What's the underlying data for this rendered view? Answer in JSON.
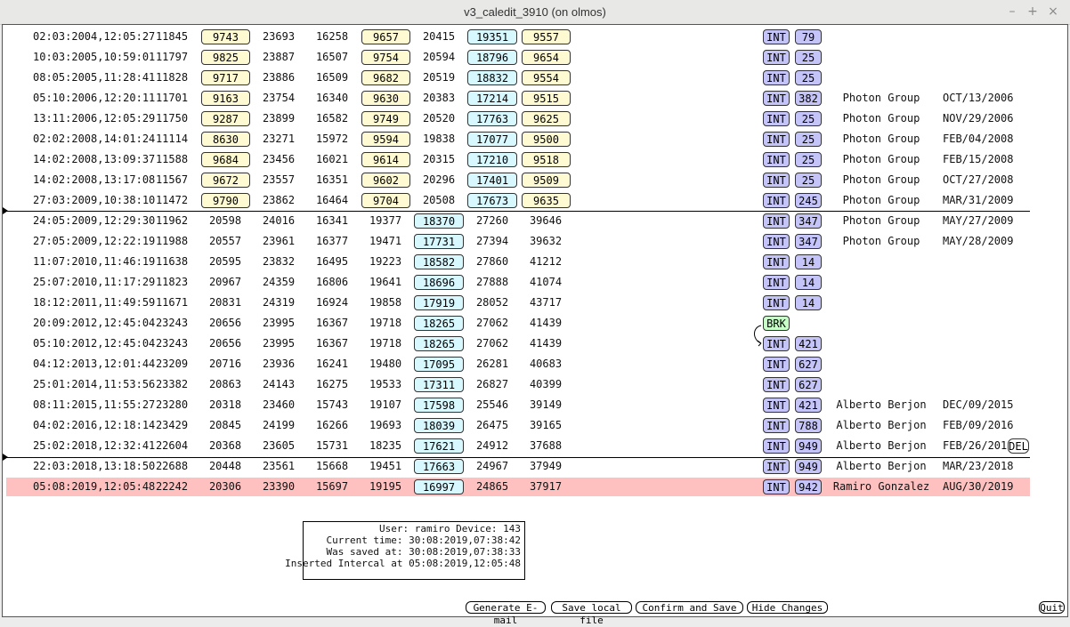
{
  "window": {
    "title": "v3_caledit_3910 (on olmos)",
    "minimize": "–",
    "maximize": "+",
    "close": "×"
  },
  "rows": [
    {
      "d": "02:03:2004,12:05:27",
      "v": [
        "11845",
        "9743",
        "23693",
        "16258",
        "9657",
        "20415",
        "19351",
        "9557"
      ],
      "layout": "A",
      "tag": "INT",
      "n": "79",
      "who": "",
      "date": ""
    },
    {
      "d": "10:03:2005,10:59:01",
      "v": [
        "11797",
        "9825",
        "23887",
        "16507",
        "9754",
        "20594",
        "18796",
        "9654"
      ],
      "layout": "A",
      "tag": "INT",
      "n": "25",
      "who": "",
      "date": ""
    },
    {
      "d": "08:05:2005,11:28:41",
      "v": [
        "11828",
        "9717",
        "23886",
        "16509",
        "9682",
        "20519",
        "18832",
        "9554"
      ],
      "layout": "A",
      "tag": "INT",
      "n": "25",
      "who": "",
      "date": ""
    },
    {
      "d": "05:10:2006,12:20:11",
      "v": [
        "11701",
        "9163",
        "23754",
        "16340",
        "9630",
        "20383",
        "17214",
        "9515"
      ],
      "layout": "A",
      "tag": "INT",
      "n": "382",
      "who": "Photon Group",
      "date": "OCT/13/2006"
    },
    {
      "d": "13:11:2006,12:05:29",
      "v": [
        "11750",
        "9287",
        "23899",
        "16582",
        "9749",
        "20520",
        "17763",
        "9625"
      ],
      "layout": "A",
      "tag": "INT",
      "n": "25",
      "who": "Photon Group",
      "date": "NOV/29/2006"
    },
    {
      "d": "02:02:2008,14:01:24",
      "v": [
        "11114",
        "8630",
        "23271",
        "15972",
        "9594",
        "19838",
        "17077",
        "9500"
      ],
      "layout": "A",
      "tag": "INT",
      "n": "25",
      "who": "Photon Group",
      "date": "FEB/04/2008"
    },
    {
      "d": "14:02:2008,13:09:37",
      "v": [
        "11588",
        "9684",
        "23456",
        "16021",
        "9614",
        "20315",
        "17210",
        "9518"
      ],
      "layout": "A",
      "tag": "INT",
      "n": "25",
      "who": "Photon Group",
      "date": "FEB/15/2008"
    },
    {
      "d": "14:02:2008,13:17:08",
      "v": [
        "11567",
        "9672",
        "23557",
        "16351",
        "9602",
        "20296",
        "17401",
        "9509"
      ],
      "layout": "A",
      "tag": "INT",
      "n": "25",
      "who": "Photon Group",
      "date": "OCT/27/2008"
    },
    {
      "d": "27:03:2009,10:38:10",
      "v": [
        "11472",
        "9790",
        "23862",
        "16464",
        "9704",
        "20508",
        "17673",
        "9635"
      ],
      "layout": "A",
      "tag": "INT",
      "n": "245",
      "who": "Photon Group",
      "date": "MAR/31/2009"
    },
    {
      "d": "24:05:2009,12:29:30",
      "v": [
        "11962",
        "20598",
        "24016",
        "16341",
        "19377",
        "18370",
        "27260",
        "39646"
      ],
      "layout": "B",
      "tag": "INT",
      "n": "347",
      "who": "Photon Group",
      "date": "MAY/27/2009"
    },
    {
      "d": "27:05:2009,12:22:19",
      "v": [
        "11988",
        "20557",
        "23961",
        "16377",
        "19471",
        "17731",
        "27394",
        "39632"
      ],
      "layout": "B",
      "tag": "INT",
      "n": "347",
      "who": "Photon Group",
      "date": "MAY/28/2009"
    },
    {
      "d": "11:07:2010,11:46:19",
      "v": [
        "11638",
        "20595",
        "23832",
        "16495",
        "19223",
        "18582",
        "27860",
        "41212"
      ],
      "layout": "B",
      "tag": "INT",
      "n": "14",
      "who": "",
      "date": ""
    },
    {
      "d": "25:07:2010,11:17:29",
      "v": [
        "11823",
        "20967",
        "24359",
        "16806",
        "19641",
        "18696",
        "27888",
        "41074"
      ],
      "layout": "B",
      "tag": "INT",
      "n": "14",
      "who": "",
      "date": ""
    },
    {
      "d": "18:12:2011,11:49:59",
      "v": [
        "11671",
        "20831",
        "24319",
        "16924",
        "19858",
        "17919",
        "28052",
        "43717"
      ],
      "layout": "B",
      "tag": "INT",
      "n": "14",
      "who": "",
      "date": ""
    },
    {
      "d": "20:09:2012,12:45:04",
      "v": [
        "23243",
        "20656",
        "23995",
        "16367",
        "19718",
        "18265",
        "27062",
        "41439"
      ],
      "layout": "B",
      "tag": "BRK",
      "n": "",
      "who": "",
      "date": ""
    },
    {
      "d": "05:10:2012,12:45:04",
      "v": [
        "23243",
        "20656",
        "23995",
        "16367",
        "19718",
        "18265",
        "27062",
        "41439"
      ],
      "layout": "B",
      "tag": "INT",
      "n": "421",
      "who": "",
      "date": ""
    },
    {
      "d": "04:12:2013,12:01:44",
      "v": [
        "23209",
        "20716",
        "23936",
        "16241",
        "19480",
        "17095",
        "26281",
        "40683"
      ],
      "layout": "B",
      "tag": "INT",
      "n": "627",
      "who": "",
      "date": ""
    },
    {
      "d": "25:01:2014,11:53:56",
      "v": [
        "23382",
        "20863",
        "24143",
        "16275",
        "19533",
        "17311",
        "26827",
        "40399"
      ],
      "layout": "B",
      "tag": "INT",
      "n": "627",
      "who": "",
      "date": ""
    },
    {
      "d": "08:11:2015,11:55:27",
      "v": [
        "23280",
        "20318",
        "23460",
        "15743",
        "19107",
        "17598",
        "25546",
        "39149"
      ],
      "layout": "B",
      "tag": "INT",
      "n": "421",
      "who": "Alberto Berjon",
      "date": "DEC/09/2015"
    },
    {
      "d": "04:02:2016,12:18:14",
      "v": [
        "23429",
        "20845",
        "24199",
        "16266",
        "19693",
        "18039",
        "26475",
        "39165"
      ],
      "layout": "B",
      "tag": "INT",
      "n": "788",
      "who": "Alberto Berjon",
      "date": "FEB/09/2016"
    },
    {
      "d": "25:02:2018,12:32:41",
      "v": [
        "22604",
        "20368",
        "23605",
        "15731",
        "18235",
        "17621",
        "24912",
        "37688"
      ],
      "layout": "B",
      "tag": "INT",
      "n": "949",
      "who": "Alberto Berjon",
      "date": "FEB/26/2018",
      "del": "DEL"
    },
    {
      "d": "22:03:2018,13:18:50",
      "v": [
        "22688",
        "20448",
        "23561",
        "15668",
        "19451",
        "17663",
        "24967",
        "37949"
      ],
      "layout": "B",
      "tag": "INT",
      "n": "949",
      "who": "Alberto Berjon",
      "date": "MAR/23/2018"
    },
    {
      "d": "05:08:2019,12:05:48",
      "v": [
        "22242",
        "20306",
        "23390",
        "15697",
        "19195",
        "16997",
        "24865",
        "37917"
      ],
      "layout": "B",
      "tag": "INT",
      "n": "942",
      "who": "Ramiro Gonzalez",
      "date": "AUG/30/2019",
      "selected": true
    }
  ],
  "info": {
    "user": "User: ramiro Device: 143",
    "current": "Current time: 30:08:2019,07:38:42",
    "saved": "Was saved at: 30:08:2019,07:38:33",
    "inserted": "Inserted Intercal at 05:08:2019,12:05:48"
  },
  "buttons": {
    "email": "Generate E-mail",
    "save_local": "Save local file",
    "confirm": "Confirm and Save",
    "hide": "Hide Changes",
    "quit": "Quit"
  },
  "colors": {
    "selected_row": "#ffc0c0",
    "yellow_box": "#fffad2",
    "cyan_box": "#d8f8ff",
    "tag_box": "#c4c4f8",
    "brk_box": "#c8ffc8"
  }
}
